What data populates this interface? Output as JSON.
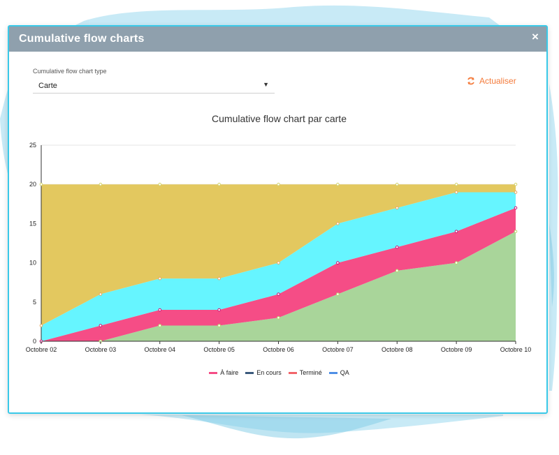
{
  "modal": {
    "title": "Cumulative flow charts",
    "close_label": "×"
  },
  "controls": {
    "select_label": "Cumulative flow chart type",
    "select_value": "Carte",
    "refresh_label": "Actualiser"
  },
  "chart_data": {
    "type": "area",
    "stacked": true,
    "title": "Cumulative flow chart par carte",
    "xlabel": "",
    "ylabel": "",
    "categories": [
      "Octobre 02",
      "Octobre 03",
      "Octobre 04",
      "Octobre 05",
      "Octobre 06",
      "Octobre 07",
      "Octobre 08",
      "Octobre 09",
      "Octobre 10"
    ],
    "ylim": [
      0,
      25
    ],
    "yticks": [
      0,
      5,
      10,
      15,
      20,
      25
    ],
    "grid": true,
    "legend_position": "bottom",
    "series": [
      {
        "name": "QA",
        "color": "#a9d59a",
        "values": [
          0,
          0,
          2,
          2,
          3,
          6,
          9,
          10,
          14
        ]
      },
      {
        "name": "Terminé",
        "color": "#f54d86",
        "values": [
          0,
          2,
          2,
          2,
          3,
          4,
          3,
          4,
          3
        ]
      },
      {
        "name": "En cours",
        "color": "#66f5ff",
        "values": [
          2,
          4,
          4,
          4,
          4,
          5,
          5,
          5,
          2
        ]
      },
      {
        "name": "À faire",
        "color": "#e3c85f",
        "values": [
          18,
          14,
          12,
          12,
          10,
          5,
          3,
          1,
          1
        ]
      }
    ],
    "legend": [
      {
        "name": "À faire",
        "color": "#f54d86"
      },
      {
        "name": "En cours",
        "color": "#3b5a7c"
      },
      {
        "name": "Terminé",
        "color": "#f2656a"
      },
      {
        "name": "QA",
        "color": "#4f8fe6"
      }
    ]
  }
}
